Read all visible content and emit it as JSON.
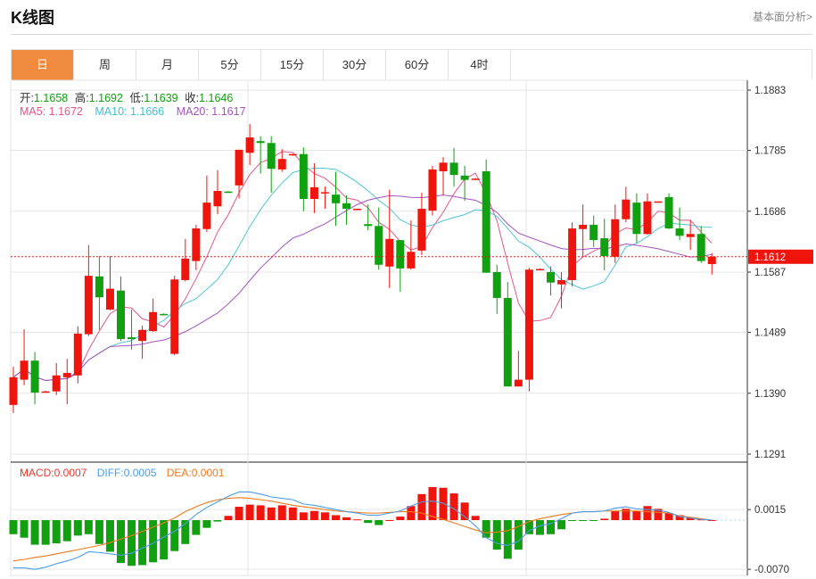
{
  "header": {
    "title": "K线图",
    "link": "基本面分析>"
  },
  "tabs": [
    {
      "label": "日",
      "active": true
    },
    {
      "label": "周"
    },
    {
      "label": "月"
    },
    {
      "label": "5分"
    },
    {
      "label": "15分"
    },
    {
      "label": "30分"
    },
    {
      "label": "60分"
    },
    {
      "label": "4时"
    }
  ],
  "ohlc_legend": {
    "open_label": "开:",
    "open": "1.1658",
    "high_label": "高:",
    "high": "1.1692",
    "low_label": "低:",
    "low": "1.1639",
    "close_label": "收:",
    "close": "1.1646"
  },
  "ma_legend": {
    "ma5": "MA5: 1.1672",
    "ma10": "MA10: 1.1666",
    "ma20": "MA20: 1.1617"
  },
  "macd_legend": {
    "macd": "MACD:0.0007",
    "diff": "DIFF:0.0005",
    "dea": "DEA:0.0001"
  },
  "colors": {
    "up": "#f0150c",
    "down": "#10a010",
    "ma5": "#e2568e",
    "ma10": "#4cc6d6",
    "ma20": "#a452c0",
    "diff": "#4a9de6",
    "dea": "#f07a1e",
    "accent": "#f08a3e"
  },
  "chart_data": [
    {
      "type": "candlestick",
      "price_axis": {
        "ticks": [
          "1.1883",
          "1.1785",
          "1.1686",
          "1.1587",
          "1.1489",
          "1.1390",
          "1.1291"
        ],
        "ylim": [
          1.1291,
          1.1883
        ]
      },
      "current_price": "1.1612",
      "grid": true,
      "ma_periods": [
        5,
        10,
        20
      ],
      "candles_ohlc": [
        [
          1.1371,
          1.1433,
          1.1358,
          1.1416
        ],
        [
          1.1412,
          1.1494,
          1.1403,
          1.1443
        ],
        [
          1.1443,
          1.1457,
          1.1372,
          1.1391
        ],
        [
          1.1393,
          1.1394,
          1.1391,
          1.1393
        ],
        [
          1.1393,
          1.1439,
          1.1387,
          1.1419
        ],
        [
          1.1416,
          1.1446,
          1.1372,
          1.1423
        ],
        [
          1.1419,
          1.1499,
          1.1406,
          1.1487
        ],
        [
          1.1486,
          1.1631,
          1.1483,
          1.1581
        ],
        [
          1.158,
          1.1613,
          1.1493,
          1.1546
        ],
        [
          1.1526,
          1.1613,
          1.1525,
          1.156
        ],
        [
          1.1557,
          1.158,
          1.1475,
          1.1478
        ],
        [
          1.1481,
          1.1526,
          1.1461,
          1.1478
        ],
        [
          1.1475,
          1.15,
          1.1446,
          1.1493
        ],
        [
          1.1491,
          1.1544,
          1.149,
          1.1522
        ],
        [
          1.1519,
          1.152,
          1.1517,
          1.1518
        ],
        [
          1.1454,
          1.1581,
          1.1452,
          1.1575
        ],
        [
          1.1574,
          1.1641,
          1.1572,
          1.1609
        ],
        [
          1.1605,
          1.1664,
          1.159,
          1.1658
        ],
        [
          1.1657,
          1.1744,
          1.1652,
          1.17
        ],
        [
          1.1694,
          1.1753,
          1.1681,
          1.1719
        ],
        [
          1.1718,
          1.1719,
          1.1716,
          1.1717
        ],
        [
          1.1728,
          1.1786,
          1.1707,
          1.1786
        ],
        [
          1.1781,
          1.1828,
          1.1761,
          1.1806
        ],
        [
          1.18,
          1.1808,
          1.1747,
          1.1797
        ],
        [
          1.1797,
          1.1808,
          1.1716,
          1.1755
        ],
        [
          1.1754,
          1.1787,
          1.175,
          1.1771
        ],
        [
          1.1777,
          1.1779,
          1.1776,
          1.1779
        ],
        [
          1.1779,
          1.179,
          1.1686,
          1.1706
        ],
        [
          1.1706,
          1.1764,
          1.1683,
          1.1725
        ],
        [
          1.1716,
          1.1726,
          1.169,
          1.1717
        ],
        [
          1.1713,
          1.175,
          1.1662,
          1.1699
        ],
        [
          1.1699,
          1.1712,
          1.1664,
          1.169
        ],
        [
          1.1689,
          1.169,
          1.1689,
          1.169
        ],
        [
          1.1665,
          1.1697,
          1.1655,
          1.1662
        ],
        [
          1.1662,
          1.1692,
          1.1591,
          1.1599
        ],
        [
          1.1596,
          1.1721,
          1.1561,
          1.1641
        ],
        [
          1.1639,
          1.1639,
          1.1555,
          1.1593
        ],
        [
          1.1593,
          1.1671,
          1.1591,
          1.162
        ],
        [
          1.1622,
          1.1716,
          1.1615,
          1.169
        ],
        [
          1.1687,
          1.176,
          1.1679,
          1.1754
        ],
        [
          1.1751,
          1.1774,
          1.1712,
          1.1765
        ],
        [
          1.1765,
          1.1789,
          1.1726,
          1.1745
        ],
        [
          1.1744,
          1.176,
          1.1703,
          1.1737
        ],
        [
          1.1738,
          1.174,
          1.1737,
          1.1739
        ],
        [
          1.1751,
          1.177,
          1.1586,
          1.1586
        ],
        [
          1.1587,
          1.1599,
          1.1519,
          1.1545
        ],
        [
          1.1545,
          1.1571,
          1.1401,
          1.1401
        ],
        [
          1.1401,
          1.1459,
          1.1401,
          1.1412
        ],
        [
          1.1412,
          1.1594,
          1.1393,
          1.1591
        ],
        [
          1.1591,
          1.1593,
          1.159,
          1.1592
        ],
        [
          1.1587,
          1.1596,
          1.1549,
          1.157
        ],
        [
          1.1567,
          1.1587,
          1.1528,
          1.1574
        ],
        [
          1.1574,
          1.1668,
          1.1564,
          1.1658
        ],
        [
          1.1657,
          1.1697,
          1.1613,
          1.1664
        ],
        [
          1.1664,
          1.1679,
          1.1628,
          1.1639
        ],
        [
          1.1642,
          1.1674,
          1.159,
          1.1613
        ],
        [
          1.1612,
          1.1697,
          1.1602,
          1.1673
        ],
        [
          1.1673,
          1.1726,
          1.1668,
          1.1705
        ],
        [
          1.17,
          1.1715,
          1.1634,
          1.1649
        ],
        [
          1.1649,
          1.1715,
          1.1648,
          1.1702
        ],
        [
          1.1701,
          1.1702,
          1.17,
          1.1702
        ],
        [
          1.1709,
          1.1715,
          1.1657,
          1.1658
        ],
        [
          1.1658,
          1.1692,
          1.1639,
          1.1646
        ],
        [
          1.1644,
          1.1671,
          1.1623,
          1.1649
        ],
        [
          1.1649,
          1.1662,
          1.1602,
          1.1605
        ],
        [
          1.16,
          1.1618,
          1.1583,
          1.1612
        ]
      ]
    },
    {
      "type": "bar+line",
      "axis": {
        "ticks": [
          "0.0015",
          "-0.0070"
        ],
        "ylim": [
          -0.0075,
          0.0052
        ]
      },
      "macd": [
        -0.002,
        -0.0025,
        -0.0035,
        -0.0035,
        -0.0033,
        -0.003,
        -0.0022,
        -0.002,
        -0.0034,
        -0.0045,
        -0.0061,
        -0.0065,
        -0.0064,
        -0.006,
        -0.0056,
        -0.0044,
        -0.0034,
        -0.0021,
        -0.0011,
        -0.0002,
        0.0006,
        0.0019,
        0.0022,
        0.0021,
        0.0018,
        0.0021,
        0.0018,
        0.0011,
        0.0013,
        0.0011,
        0.0007,
        0.0004,
        0.0001,
        -0.0004,
        -0.0007,
        0.0,
        0.0005,
        0.002,
        0.0037,
        0.0047,
        0.0046,
        0.0038,
        0.0025,
        0.0006,
        -0.0025,
        -0.0042,
        -0.0055,
        -0.0042,
        -0.002,
        -0.0021,
        -0.002,
        -0.0013,
        -0.0001,
        -0.0001,
        -0.0001,
        0.0002,
        0.0013,
        0.0016,
        0.0013,
        0.002,
        0.0016,
        0.001,
        0.0007,
        0.0004,
        0.0001,
        0.0
      ],
      "diff": [
        -0.0068,
        -0.0068,
        -0.007,
        -0.0067,
        -0.0062,
        -0.0058,
        -0.0053,
        -0.0045,
        -0.0046,
        -0.0048,
        -0.005,
        -0.0047,
        -0.004,
        -0.0033,
        -0.0024,
        -0.0016,
        -0.0005,
        0.0008,
        0.0018,
        0.0026,
        0.0034,
        0.004,
        0.004,
        0.0037,
        0.0033,
        0.0031,
        0.0029,
        0.0023,
        0.0021,
        0.0018,
        0.0015,
        0.0012,
        0.001,
        0.0007,
        0.0007,
        0.001,
        0.0013,
        0.002,
        0.0026,
        0.0027,
        0.0024,
        0.0016,
        0.0005,
        -0.0008,
        -0.0025,
        -0.0033,
        -0.0036,
        -0.003,
        -0.0015,
        -0.0008,
        -0.0005,
        0.0002,
        0.001,
        0.0012,
        0.0012,
        0.0013,
        0.0017,
        0.0019,
        0.0016,
        0.0015,
        0.0014,
        0.0011,
        0.0005,
        0.0003,
        0.0001,
        0.0
      ],
      "dea": [
        -0.0058,
        -0.0056,
        -0.0053,
        -0.0051,
        -0.0048,
        -0.0045,
        -0.0042,
        -0.0039,
        -0.0036,
        -0.0032,
        -0.0027,
        -0.0022,
        -0.0016,
        -0.001,
        -0.0004,
        0.0003,
        0.0012,
        0.0019,
        0.0025,
        0.0029,
        0.0031,
        0.0032,
        0.0031,
        0.0029,
        0.0027,
        0.0024,
        0.0021,
        0.0019,
        0.0017,
        0.0015,
        0.0013,
        0.0012,
        0.0011,
        0.001,
        0.001,
        0.0011,
        0.0012,
        0.0012,
        0.001,
        0.0005,
        0.0001,
        -0.0004,
        -0.0009,
        -0.0014,
        -0.0018,
        -0.0017,
        -0.0015,
        -0.0009,
        -0.0002,
        0.0002,
        0.0005,
        0.0008,
        0.001,
        0.0012,
        0.0012,
        0.0013,
        0.0013,
        0.0013,
        0.0013,
        0.0012,
        0.0011,
        0.001,
        0.0006,
        0.0004,
        0.0002,
        0.0
      ]
    }
  ]
}
